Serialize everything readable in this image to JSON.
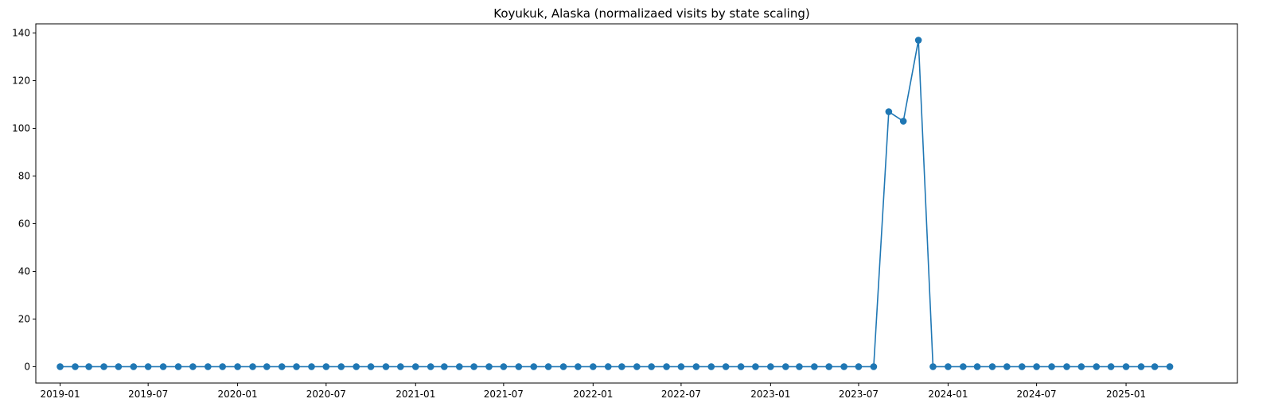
{
  "chart_data": {
    "type": "line",
    "title": "Koyukuk, Alaska (normalizaed visits by state scaling)",
    "xlabel": "",
    "ylabel": "",
    "x_type": "date",
    "x": [
      "2019-01",
      "2019-02",
      "2019-03",
      "2019-04",
      "2019-05",
      "2019-06",
      "2019-07",
      "2019-08",
      "2019-09",
      "2019-10",
      "2019-11",
      "2019-12",
      "2020-01",
      "2020-02",
      "2020-03",
      "2020-04",
      "2020-05",
      "2020-06",
      "2020-07",
      "2020-08",
      "2020-09",
      "2020-10",
      "2020-11",
      "2020-12",
      "2021-01",
      "2021-02",
      "2021-03",
      "2021-04",
      "2021-05",
      "2021-06",
      "2021-07",
      "2021-08",
      "2021-09",
      "2021-10",
      "2021-11",
      "2021-12",
      "2022-01",
      "2022-02",
      "2022-03",
      "2022-04",
      "2022-05",
      "2022-06",
      "2022-07",
      "2022-08",
      "2022-09",
      "2022-10",
      "2022-11",
      "2022-12",
      "2023-01",
      "2023-02",
      "2023-03",
      "2023-04",
      "2023-05",
      "2023-06",
      "2023-07",
      "2023-08",
      "2023-09",
      "2023-10",
      "2023-11",
      "2023-12",
      "2024-01",
      "2024-02",
      "2024-03",
      "2024-04",
      "2024-05",
      "2024-06",
      "2024-07",
      "2024-08",
      "2024-09",
      "2024-10",
      "2024-11",
      "2024-12",
      "2025-01",
      "2025-02",
      "2025-03",
      "2025-04"
    ],
    "series": [
      {
        "color": "#1f77b4",
        "marker": "circle",
        "values": [
          0,
          0,
          0,
          0,
          0,
          0,
          0,
          0,
          0,
          0,
          0,
          0,
          0,
          0,
          0,
          0,
          0,
          0,
          0,
          0,
          0,
          0,
          0,
          0,
          0,
          0,
          0,
          0,
          0,
          0,
          0,
          0,
          0,
          0,
          0,
          0,
          0,
          0,
          0,
          0,
          0,
          0,
          0,
          0,
          0,
          0,
          0,
          0,
          0,
          0,
          0,
          0,
          0,
          0,
          0,
          0,
          107,
          103,
          137,
          0,
          0,
          0,
          0,
          0,
          0,
          0,
          0,
          0,
          0,
          0,
          0,
          0,
          0,
          0,
          0,
          0
        ]
      }
    ],
    "xticks": [
      "2019-01",
      "2019-07",
      "2020-01",
      "2020-07",
      "2021-01",
      "2021-07",
      "2022-01",
      "2022-07",
      "2023-01",
      "2023-07",
      "2024-01",
      "2024-07",
      "2025-01"
    ],
    "yticks": [
      0,
      20,
      40,
      60,
      80,
      100,
      120,
      140
    ],
    "xlim": [
      "2018-11-12",
      "2025-08-18"
    ],
    "ylim": [
      -6.85,
      143.85
    ],
    "grid": false,
    "legend": "none"
  }
}
